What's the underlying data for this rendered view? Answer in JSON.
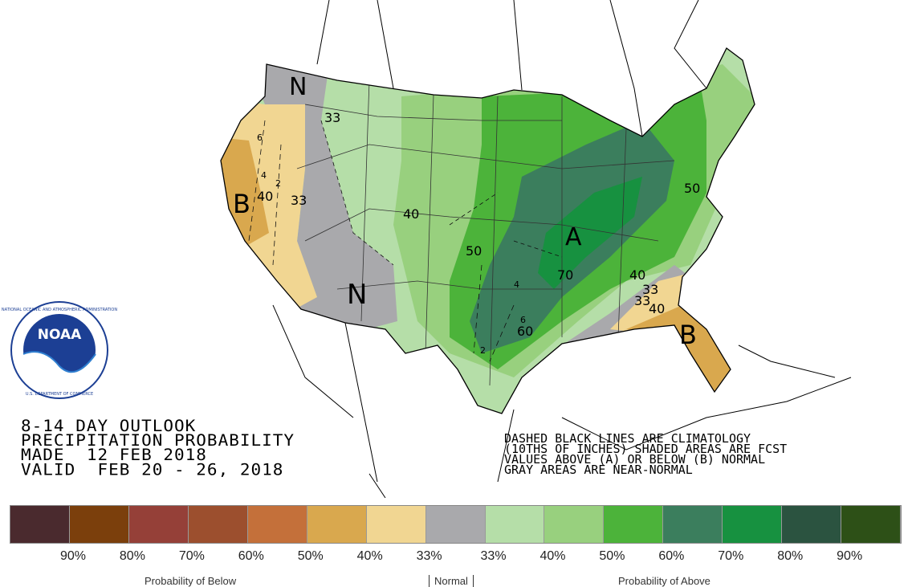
{
  "map": {
    "region_labels": [
      {
        "text": "N",
        "kind": "near-normal"
      },
      {
        "text": "N",
        "kind": "near-normal"
      },
      {
        "text": "B",
        "kind": "below"
      },
      {
        "text": "B",
        "kind": "below"
      },
      {
        "text": "A",
        "kind": "above"
      }
    ],
    "contour_labels": [
      "33",
      "40",
      "33",
      "40",
      "50",
      "70",
      "60",
      "40",
      "33",
      "33",
      "40",
      "50"
    ],
    "climatology_labels": [
      "6",
      "4",
      "2",
      "4",
      "6",
      "2"
    ]
  },
  "title": {
    "line1": "8-14 DAY OUTLOOK",
    "line2": "PRECIPITATION PROBABILITY",
    "line3": "MADE  12 FEB 2018",
    "line4": "VALID  FEB 20 - 26, 2018"
  },
  "notes": {
    "line1": "DASHED BLACK LINES ARE CLIMATOLOGY",
    "line2": "(10THS OF INCHES) SHADED AREAS ARE FCST",
    "line3": "VALUES ABOVE (A) OR BELOW (B) NORMAL",
    "line4": "GRAY AREAS ARE NEAR-NORMAL"
  },
  "logo": {
    "text": "NOAA",
    "ring_text": "NATIONAL OCEANIC AND ATMOSPHERIC ADMINISTRATION · U.S. DEPARTMENT OF COMMERCE"
  },
  "legend": {
    "colors": [
      "#4a2a2e",
      "#7b3f0c",
      "#954038",
      "#9c4f2e",
      "#c4703a",
      "#d9a84e",
      "#f1d692",
      "#a9a9ac",
      "#b5dea8",
      "#98d07e",
      "#4cb33a",
      "#3b7e5d",
      "#179140",
      "#2b5340",
      "#2d5017"
    ],
    "labels": [
      "90%",
      "80%",
      "70%",
      "60%",
      "50%",
      "40%",
      "33%",
      "33%",
      "40%",
      "50%",
      "60%",
      "70%",
      "80%",
      "90%"
    ],
    "captions": {
      "below": "Probability of Below",
      "normal": "Normal",
      "above": "Probability of Above"
    }
  },
  "colors": {
    "near_normal": "#a9a9ac",
    "below_33": "#f1d692",
    "below_40": "#d9a84e",
    "above_33": "#b5dea8",
    "above_40": "#98d07e",
    "above_50": "#4cb33a",
    "above_60": "#3b7e5d",
    "above_70": "#179140"
  }
}
